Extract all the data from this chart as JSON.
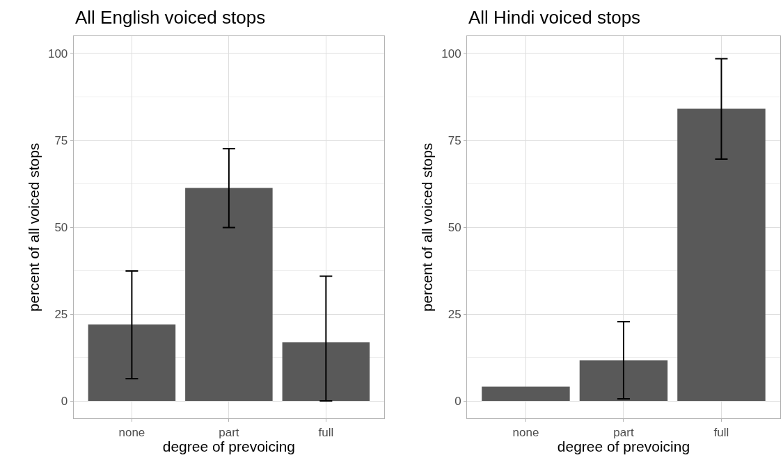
{
  "chart_data": [
    {
      "type": "bar",
      "title": "All English voiced stops",
      "xlabel": "degree of prevoicing",
      "ylabel": "percent of all voiced stops",
      "categories": [
        "none",
        "part",
        "full"
      ],
      "values": [
        22.0,
        61.3,
        16.9
      ],
      "color": "#595959",
      "errors": [
        [
          6.4,
          37.4
        ],
        [
          49.9,
          72.6
        ],
        [
          0,
          35.9
        ]
      ],
      "ylim": [
        -5,
        105
      ],
      "yticks": [
        0,
        25,
        50,
        75,
        100
      ],
      "grid": true
    },
    {
      "type": "bar",
      "title": "All Hindi voiced stops",
      "xlabel": "degree of prevoicing",
      "ylabel": "percent of all voiced stops",
      "categories": [
        "none",
        "part",
        "full"
      ],
      "values": [
        4.1,
        11.7,
        84.1
      ],
      "color": "#595959",
      "errors": [
        null,
        [
          0.6,
          22.8
        ],
        [
          69.6,
          98.5
        ]
      ],
      "ylim": [
        -5,
        105
      ],
      "yticks": [
        0,
        25,
        50,
        75,
        100
      ],
      "grid": true
    }
  ]
}
